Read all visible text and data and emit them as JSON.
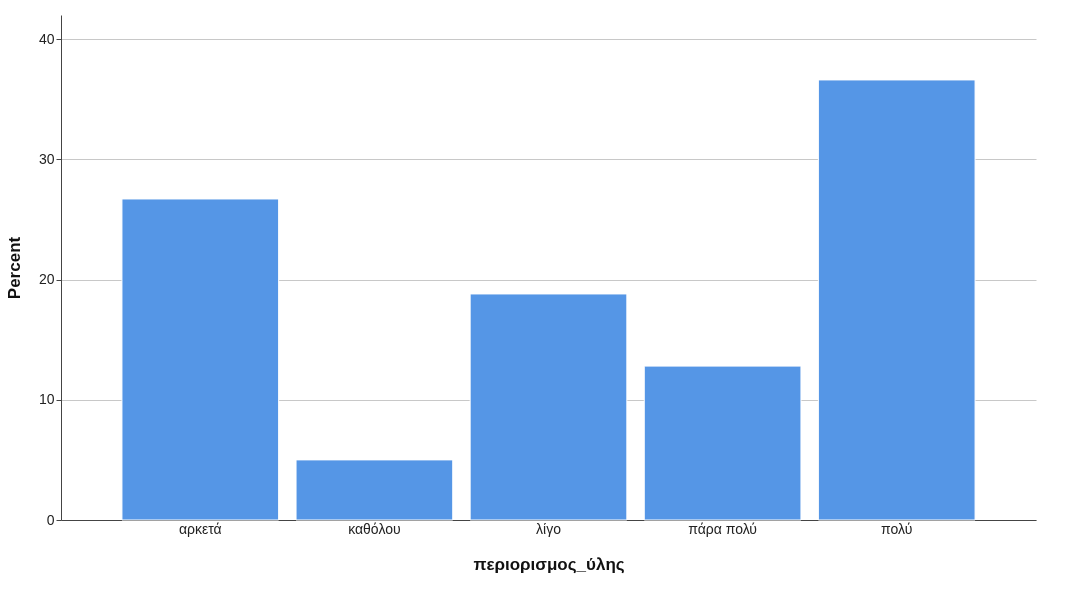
{
  "chart_data": {
    "type": "bar",
    "xlabel": "περιορισμος_ύλης",
    "ylabel": "Percent",
    "categories": [
      "αρκετά",
      "καθόλου",
      "λίγο",
      "πάρα πολύ",
      "πολύ"
    ],
    "values": [
      26.7,
      5.0,
      18.8,
      12.8,
      36.6
    ],
    "color": "#5596e6",
    "ylim": [
      0,
      42
    ],
    "yticks": [
      0,
      10,
      20,
      30,
      40
    ],
    "grid": "y"
  }
}
